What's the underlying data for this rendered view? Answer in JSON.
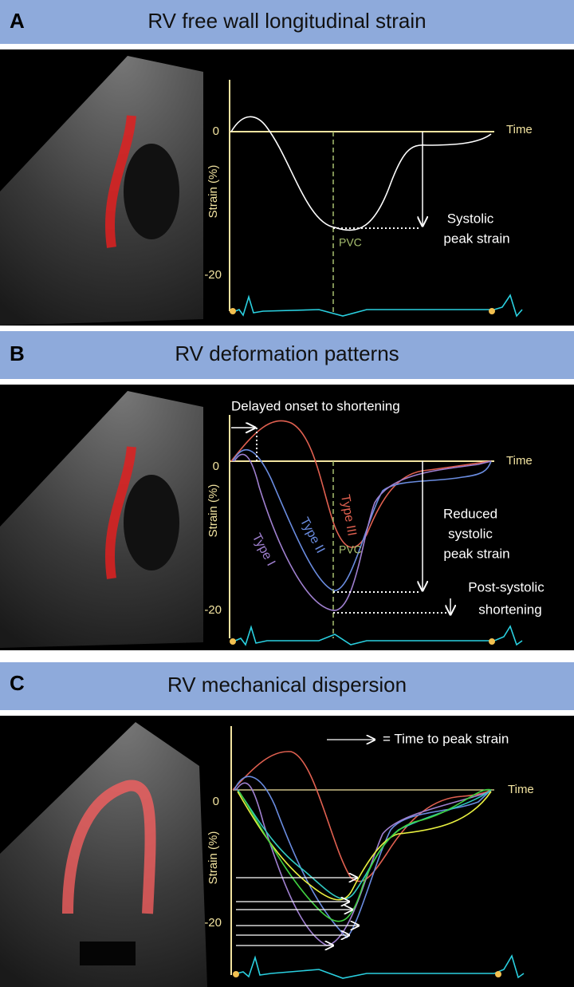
{
  "panels": [
    {
      "letter": "A",
      "title": "RV free wall longitudinal strain",
      "y_axis_label": "Strain (%)",
      "y_ticks": [
        "0",
        "-20"
      ],
      "x_axis_label": "Time",
      "labels": [
        "PVC",
        "Systolic",
        "peak strain"
      ]
    },
    {
      "letter": "B",
      "title": "RV deformation patterns",
      "y_axis_label": "Strain (%)",
      "y_ticks": [
        "0",
        "-20"
      ],
      "x_axis_label": "Time",
      "labels": [
        "Delayed onset to shortening",
        "Type III",
        "Type II",
        "Type I",
        "PVC",
        "Reduced",
        "systolic",
        "peak strain",
        "Post-systolic",
        "shortening"
      ]
    },
    {
      "letter": "C",
      "title": "RV mechanical dispersion",
      "y_axis_label": "Strain (%)",
      "y_ticks": [
        "0",
        "-20"
      ],
      "x_axis_label": "Time",
      "labels": [
        "= Time to peak strain"
      ]
    }
  ]
}
